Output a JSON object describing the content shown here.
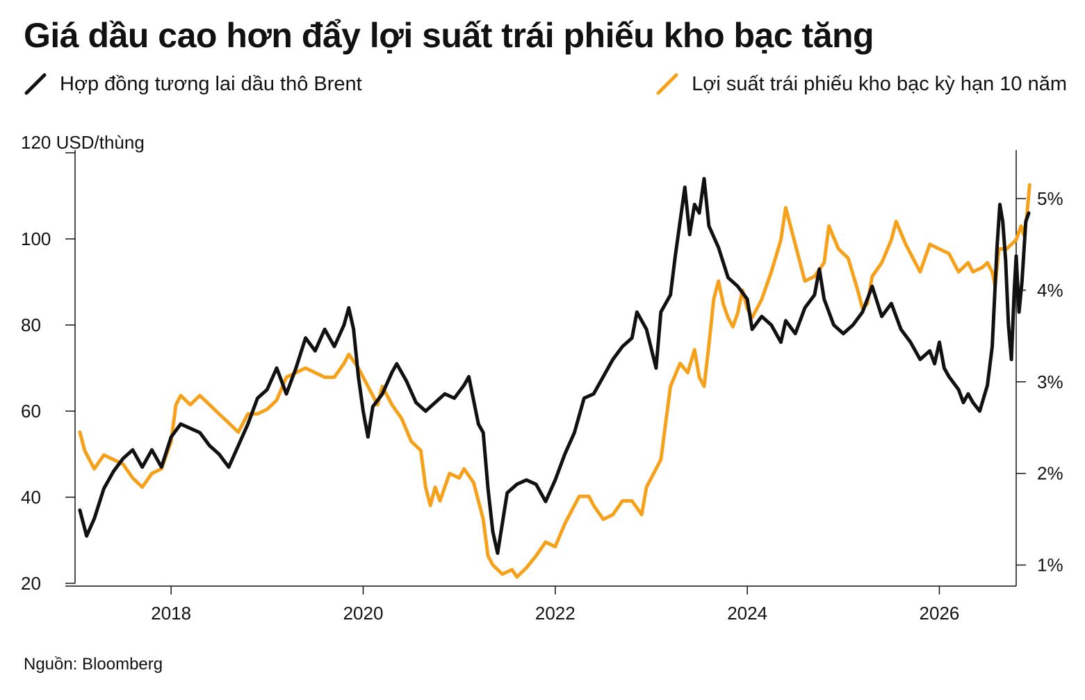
{
  "title": "Giá dầu cao hơn đẩy lợi suất trái phiếu kho bạc tăng",
  "source": "Nguồn: Bloomberg",
  "legend": [
    {
      "label": "Hợp đồng tương lai dầu thô Brent",
      "color": "#111111"
    },
    {
      "label": "Lợi suất trái phiếu kho bạc kỳ hạn 10 năm",
      "color": "#f5a11b"
    }
  ],
  "chart_data": {
    "type": "line",
    "x_ticks": [
      "2018",
      "2020",
      "2022",
      "2024",
      "2026"
    ],
    "x_range": [
      2017.0,
      2026.8
    ],
    "y_left": {
      "unit_label": "USD/thùng",
      "ticks": [
        20,
        40,
        60,
        80,
        100,
        120
      ],
      "range": [
        20,
        120
      ]
    },
    "y_right": {
      "ticks": [
        1,
        2,
        3,
        4,
        5
      ],
      "tick_labels": [
        "1%",
        "2%",
        "3%",
        "4%",
        "5%"
      ],
      "range": [
        0.8,
        5.5
      ]
    },
    "series": [
      {
        "name": "Hợp đồng tương lai dầu thô Brent",
        "axis": "left",
        "color": "#111111",
        "points": [
          [
            2017.05,
            37
          ],
          [
            2017.12,
            31
          ],
          [
            2017.2,
            35
          ],
          [
            2017.3,
            42
          ],
          [
            2017.4,
            46
          ],
          [
            2017.5,
            49
          ],
          [
            2017.6,
            51
          ],
          [
            2017.7,
            47
          ],
          [
            2017.8,
            51
          ],
          [
            2017.9,
            47
          ],
          [
            2018.0,
            54
          ],
          [
            2018.1,
            57
          ],
          [
            2018.2,
            56
          ],
          [
            2018.3,
            55
          ],
          [
            2018.4,
            52
          ],
          [
            2018.5,
            50
          ],
          [
            2018.6,
            47
          ],
          [
            2018.7,
            52
          ],
          [
            2018.8,
            57
          ],
          [
            2018.9,
            63
          ],
          [
            2019.0,
            65
          ],
          [
            2019.1,
            70
          ],
          [
            2019.2,
            64
          ],
          [
            2019.3,
            70
          ],
          [
            2019.4,
            77
          ],
          [
            2019.5,
            74
          ],
          [
            2019.6,
            79
          ],
          [
            2019.7,
            75
          ],
          [
            2019.8,
            80
          ],
          [
            2019.85,
            84
          ],
          [
            2019.9,
            79
          ],
          [
            2019.95,
            68
          ],
          [
            2020.0,
            60
          ],
          [
            2020.05,
            54
          ],
          [
            2020.1,
            61
          ],
          [
            2020.2,
            64
          ],
          [
            2020.3,
            69
          ],
          [
            2020.35,
            71
          ],
          [
            2020.45,
            67
          ],
          [
            2020.55,
            62
          ],
          [
            2020.65,
            60
          ],
          [
            2020.75,
            62
          ],
          [
            2020.85,
            64
          ],
          [
            2020.95,
            63
          ],
          [
            2021.05,
            66
          ],
          [
            2021.1,
            68
          ],
          [
            2021.2,
            57
          ],
          [
            2021.25,
            55
          ],
          [
            2021.3,
            42
          ],
          [
            2021.35,
            32
          ],
          [
            2021.4,
            27
          ],
          [
            2021.45,
            34
          ],
          [
            2021.5,
            41
          ],
          [
            2021.6,
            43
          ],
          [
            2021.7,
            44
          ],
          [
            2021.8,
            43
          ],
          [
            2021.9,
            39
          ],
          [
            2022.0,
            44
          ],
          [
            2022.1,
            50
          ],
          [
            2022.2,
            55
          ],
          [
            2022.3,
            63
          ],
          [
            2022.4,
            64
          ],
          [
            2022.5,
            68
          ],
          [
            2022.6,
            72
          ],
          [
            2022.7,
            75
          ],
          [
            2022.8,
            77
          ],
          [
            2022.85,
            83
          ],
          [
            2022.95,
            79
          ],
          [
            2023.05,
            70
          ],
          [
            2023.1,
            83
          ],
          [
            2023.2,
            87
          ],
          [
            2023.25,
            96
          ],
          [
            2023.35,
            112
          ],
          [
            2023.4,
            101
          ],
          [
            2023.45,
            108
          ],
          [
            2023.5,
            106
          ],
          [
            2023.55,
            114
          ],
          [
            2023.6,
            103
          ],
          [
            2023.7,
            98
          ],
          [
            2023.8,
            91
          ],
          [
            2023.9,
            89
          ],
          [
            2024.0,
            86
          ],
          [
            2024.05,
            79
          ],
          [
            2024.15,
            82
          ],
          [
            2024.25,
            80
          ],
          [
            2024.35,
            76
          ],
          [
            2024.4,
            81
          ],
          [
            2024.5,
            78
          ],
          [
            2024.6,
            84
          ],
          [
            2024.7,
            87
          ],
          [
            2024.75,
            93
          ],
          [
            2024.8,
            86
          ],
          [
            2024.9,
            80
          ],
          [
            2025.0,
            78
          ],
          [
            2025.1,
            80
          ],
          [
            2025.2,
            83
          ],
          [
            2025.3,
            89
          ],
          [
            2025.4,
            82
          ],
          [
            2025.5,
            85
          ],
          [
            2025.6,
            79
          ],
          [
            2025.7,
            76
          ],
          [
            2025.8,
            72
          ],
          [
            2025.9,
            74
          ],
          [
            2025.95,
            71
          ],
          [
            2026.0,
            76
          ],
          [
            2026.05,
            70
          ],
          [
            2026.1,
            68
          ],
          [
            2026.2,
            65
          ],
          [
            2026.25,
            62
          ],
          [
            2026.3,
            64
          ],
          [
            2026.35,
            62
          ],
          [
            2026.42,
            60
          ],
          [
            2026.5,
            66
          ],
          [
            2026.55,
            75
          ],
          [
            2026.6,
            98
          ],
          [
            2026.63,
            108
          ],
          [
            2026.66,
            104
          ],
          [
            2026.69,
            95
          ],
          [
            2026.72,
            80
          ],
          [
            2026.75,
            72
          ],
          [
            2026.78,
            88
          ],
          [
            2026.8,
            96
          ],
          [
            2026.83,
            83
          ],
          [
            2026.86,
            90
          ],
          [
            2026.9,
            104
          ],
          [
            2026.93,
            106
          ]
        ]
      },
      {
        "name": "Lợi suất trái phiếu kho bạc kỳ hạn 10 năm",
        "axis": "right",
        "color": "#f5a11b",
        "points": [
          [
            2017.05,
            2.45
          ],
          [
            2017.1,
            2.25
          ],
          [
            2017.2,
            2.05
          ],
          [
            2017.3,
            2.2
          ],
          [
            2017.4,
            2.15
          ],
          [
            2017.5,
            2.1
          ],
          [
            2017.6,
            1.95
          ],
          [
            2017.7,
            1.85
          ],
          [
            2017.8,
            2.0
          ],
          [
            2017.9,
            2.05
          ],
          [
            2018.0,
            2.35
          ],
          [
            2018.05,
            2.75
          ],
          [
            2018.1,
            2.85
          ],
          [
            2018.2,
            2.75
          ],
          [
            2018.3,
            2.85
          ],
          [
            2018.4,
            2.75
          ],
          [
            2018.5,
            2.65
          ],
          [
            2018.6,
            2.55
          ],
          [
            2018.7,
            2.45
          ],
          [
            2018.8,
            2.65
          ],
          [
            2018.9,
            2.65
          ],
          [
            2019.0,
            2.7
          ],
          [
            2019.1,
            2.8
          ],
          [
            2019.2,
            3.05
          ],
          [
            2019.3,
            3.1
          ],
          [
            2019.4,
            3.15
          ],
          [
            2019.5,
            3.1
          ],
          [
            2019.6,
            3.05
          ],
          [
            2019.7,
            3.05
          ],
          [
            2019.8,
            3.2
          ],
          [
            2019.85,
            3.3
          ],
          [
            2019.95,
            3.15
          ],
          [
            2020.05,
            2.95
          ],
          [
            2020.15,
            2.75
          ],
          [
            2020.2,
            2.95
          ],
          [
            2020.3,
            2.75
          ],
          [
            2020.4,
            2.6
          ],
          [
            2020.5,
            2.35
          ],
          [
            2020.6,
            2.25
          ],
          [
            2020.65,
            1.85
          ],
          [
            2020.7,
            1.65
          ],
          [
            2020.75,
            1.85
          ],
          [
            2020.8,
            1.7
          ],
          [
            2020.9,
            2.0
          ],
          [
            2021.0,
            1.95
          ],
          [
            2021.05,
            2.05
          ],
          [
            2021.15,
            1.9
          ],
          [
            2021.25,
            1.5
          ],
          [
            2021.3,
            1.1
          ],
          [
            2021.35,
            1.0
          ],
          [
            2021.45,
            0.9
          ],
          [
            2021.55,
            0.95
          ],
          [
            2021.6,
            0.87
          ],
          [
            2021.7,
            0.97
          ],
          [
            2021.8,
            1.1
          ],
          [
            2021.9,
            1.25
          ],
          [
            2022.0,
            1.2
          ],
          [
            2022.1,
            1.45
          ],
          [
            2022.2,
            1.65
          ],
          [
            2022.25,
            1.75
          ],
          [
            2022.35,
            1.75
          ],
          [
            2022.4,
            1.65
          ],
          [
            2022.5,
            1.5
          ],
          [
            2022.6,
            1.55
          ],
          [
            2022.7,
            1.7
          ],
          [
            2022.8,
            1.7
          ],
          [
            2022.9,
            1.55
          ],
          [
            2022.95,
            1.85
          ],
          [
            2023.05,
            2.05
          ],
          [
            2023.1,
            2.15
          ],
          [
            2023.2,
            2.95
          ],
          [
            2023.3,
            3.2
          ],
          [
            2023.38,
            3.1
          ],
          [
            2023.45,
            3.35
          ],
          [
            2023.5,
            3.05
          ],
          [
            2023.55,
            2.95
          ],
          [
            2023.6,
            3.4
          ],
          [
            2023.65,
            3.9
          ],
          [
            2023.7,
            4.1
          ],
          [
            2023.75,
            3.85
          ],
          [
            2023.8,
            3.7
          ],
          [
            2023.85,
            3.6
          ],
          [
            2023.9,
            3.75
          ],
          [
            2023.95,
            4.0
          ],
          [
            2024.0,
            3.8
          ],
          [
            2024.05,
            3.7
          ],
          [
            2024.15,
            3.9
          ],
          [
            2024.25,
            4.2
          ],
          [
            2024.35,
            4.55
          ],
          [
            2024.4,
            4.9
          ],
          [
            2024.45,
            4.7
          ],
          [
            2024.55,
            4.3
          ],
          [
            2024.6,
            4.1
          ],
          [
            2024.7,
            4.15
          ],
          [
            2024.8,
            4.3
          ],
          [
            2024.85,
            4.7
          ],
          [
            2024.95,
            4.45
          ],
          [
            2025.05,
            4.35
          ],
          [
            2025.15,
            4.0
          ],
          [
            2025.2,
            3.8
          ],
          [
            2025.25,
            3.85
          ],
          [
            2025.3,
            4.15
          ],
          [
            2025.4,
            4.3
          ],
          [
            2025.5,
            4.55
          ],
          [
            2025.55,
            4.75
          ],
          [
            2025.65,
            4.5
          ],
          [
            2025.75,
            4.3
          ],
          [
            2025.8,
            4.2
          ],
          [
            2025.9,
            4.5
          ],
          [
            2026.0,
            4.45
          ],
          [
            2026.1,
            4.4
          ],
          [
            2026.2,
            4.2
          ],
          [
            2026.3,
            4.3
          ],
          [
            2026.35,
            4.2
          ],
          [
            2026.45,
            4.25
          ],
          [
            2026.5,
            4.3
          ],
          [
            2026.55,
            4.2
          ],
          [
            2026.58,
            4.05
          ],
          [
            2026.62,
            4.45
          ],
          [
            2026.7,
            4.45
          ],
          [
            2026.75,
            4.5
          ],
          [
            2026.8,
            4.55
          ],
          [
            2026.85,
            4.7
          ],
          [
            2026.88,
            4.6
          ],
          [
            2026.91,
            4.8
          ],
          [
            2026.94,
            5.15
          ]
        ]
      }
    ]
  }
}
